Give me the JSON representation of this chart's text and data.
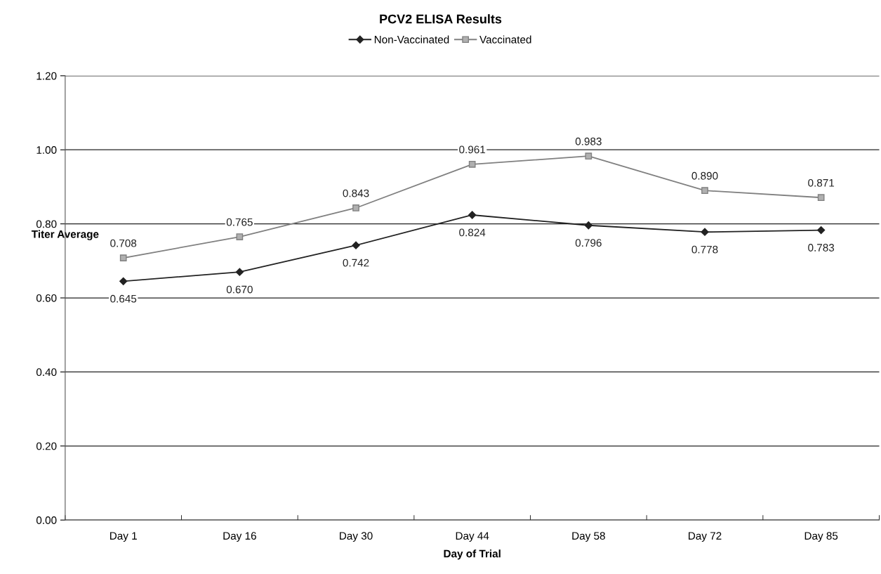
{
  "chart_data": {
    "type": "line",
    "title": "PCV2 ELISA Results",
    "xlabel": "Day of Trial",
    "ylabel": "Titer Average",
    "categories": [
      "Day 1",
      "Day 16",
      "Day 30",
      "Day 44",
      "Day 58",
      "Day 72",
      "Day 85"
    ],
    "series": [
      {
        "name": "Non-Vaccinated",
        "color": "#222222",
        "marker": "diamond",
        "values": [
          0.645,
          0.67,
          0.742,
          0.824,
          0.796,
          0.778,
          0.783
        ],
        "value_labels": [
          "0.645",
          "0.670",
          "0.742",
          "0.824",
          "0.796",
          "0.778",
          "0.783"
        ]
      },
      {
        "name": "Vaccinated",
        "color": "#808080",
        "marker": "square",
        "values": [
          0.708,
          0.765,
          0.843,
          0.961,
          0.983,
          0.89,
          0.871
        ],
        "value_labels": [
          "0.708",
          "0.765",
          "0.843",
          "0.961",
          "0.983",
          "0.890",
          "0.871"
        ]
      }
    ],
    "ylim": [
      0,
      1.2
    ],
    "yticks": [
      {
        "value": 0,
        "label": "0.00"
      },
      {
        "value": 0.2,
        "label": "0.20"
      },
      {
        "value": 0.4,
        "label": "0.40"
      },
      {
        "value": 0.6,
        "label": "0.60"
      },
      {
        "value": 0.8,
        "label": "0.80"
      },
      {
        "value": 1.0,
        "label": "1.00"
      },
      {
        "value": 1.2,
        "label": "1.20"
      }
    ],
    "grid": "y",
    "legend": "top",
    "line_style": "solid"
  }
}
